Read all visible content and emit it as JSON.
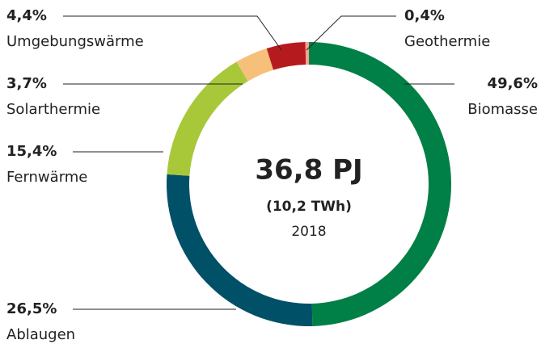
{
  "chart_data": {
    "type": "donut",
    "categories": [
      "Biomasse",
      "Ablaugen",
      "Fernwärme",
      "Solarthermie",
      "Umgebungswärme",
      "Geothermie"
    ],
    "values": [
      49.6,
      26.5,
      15.4,
      3.7,
      4.4,
      0.4
    ],
    "value_labels": [
      "49,6%",
      "26,5%",
      "15,4%",
      "3,7%",
      "4,4%",
      "0,4%"
    ],
    "colors": [
      "#007f46",
      "#005068",
      "#a8c83a",
      "#f7c07a",
      "#b51a1f",
      "#f4a38c"
    ],
    "center_title": "36,8 PJ",
    "center_subtitle": "(10,2 TWh)",
    "center_year": "2018"
  }
}
